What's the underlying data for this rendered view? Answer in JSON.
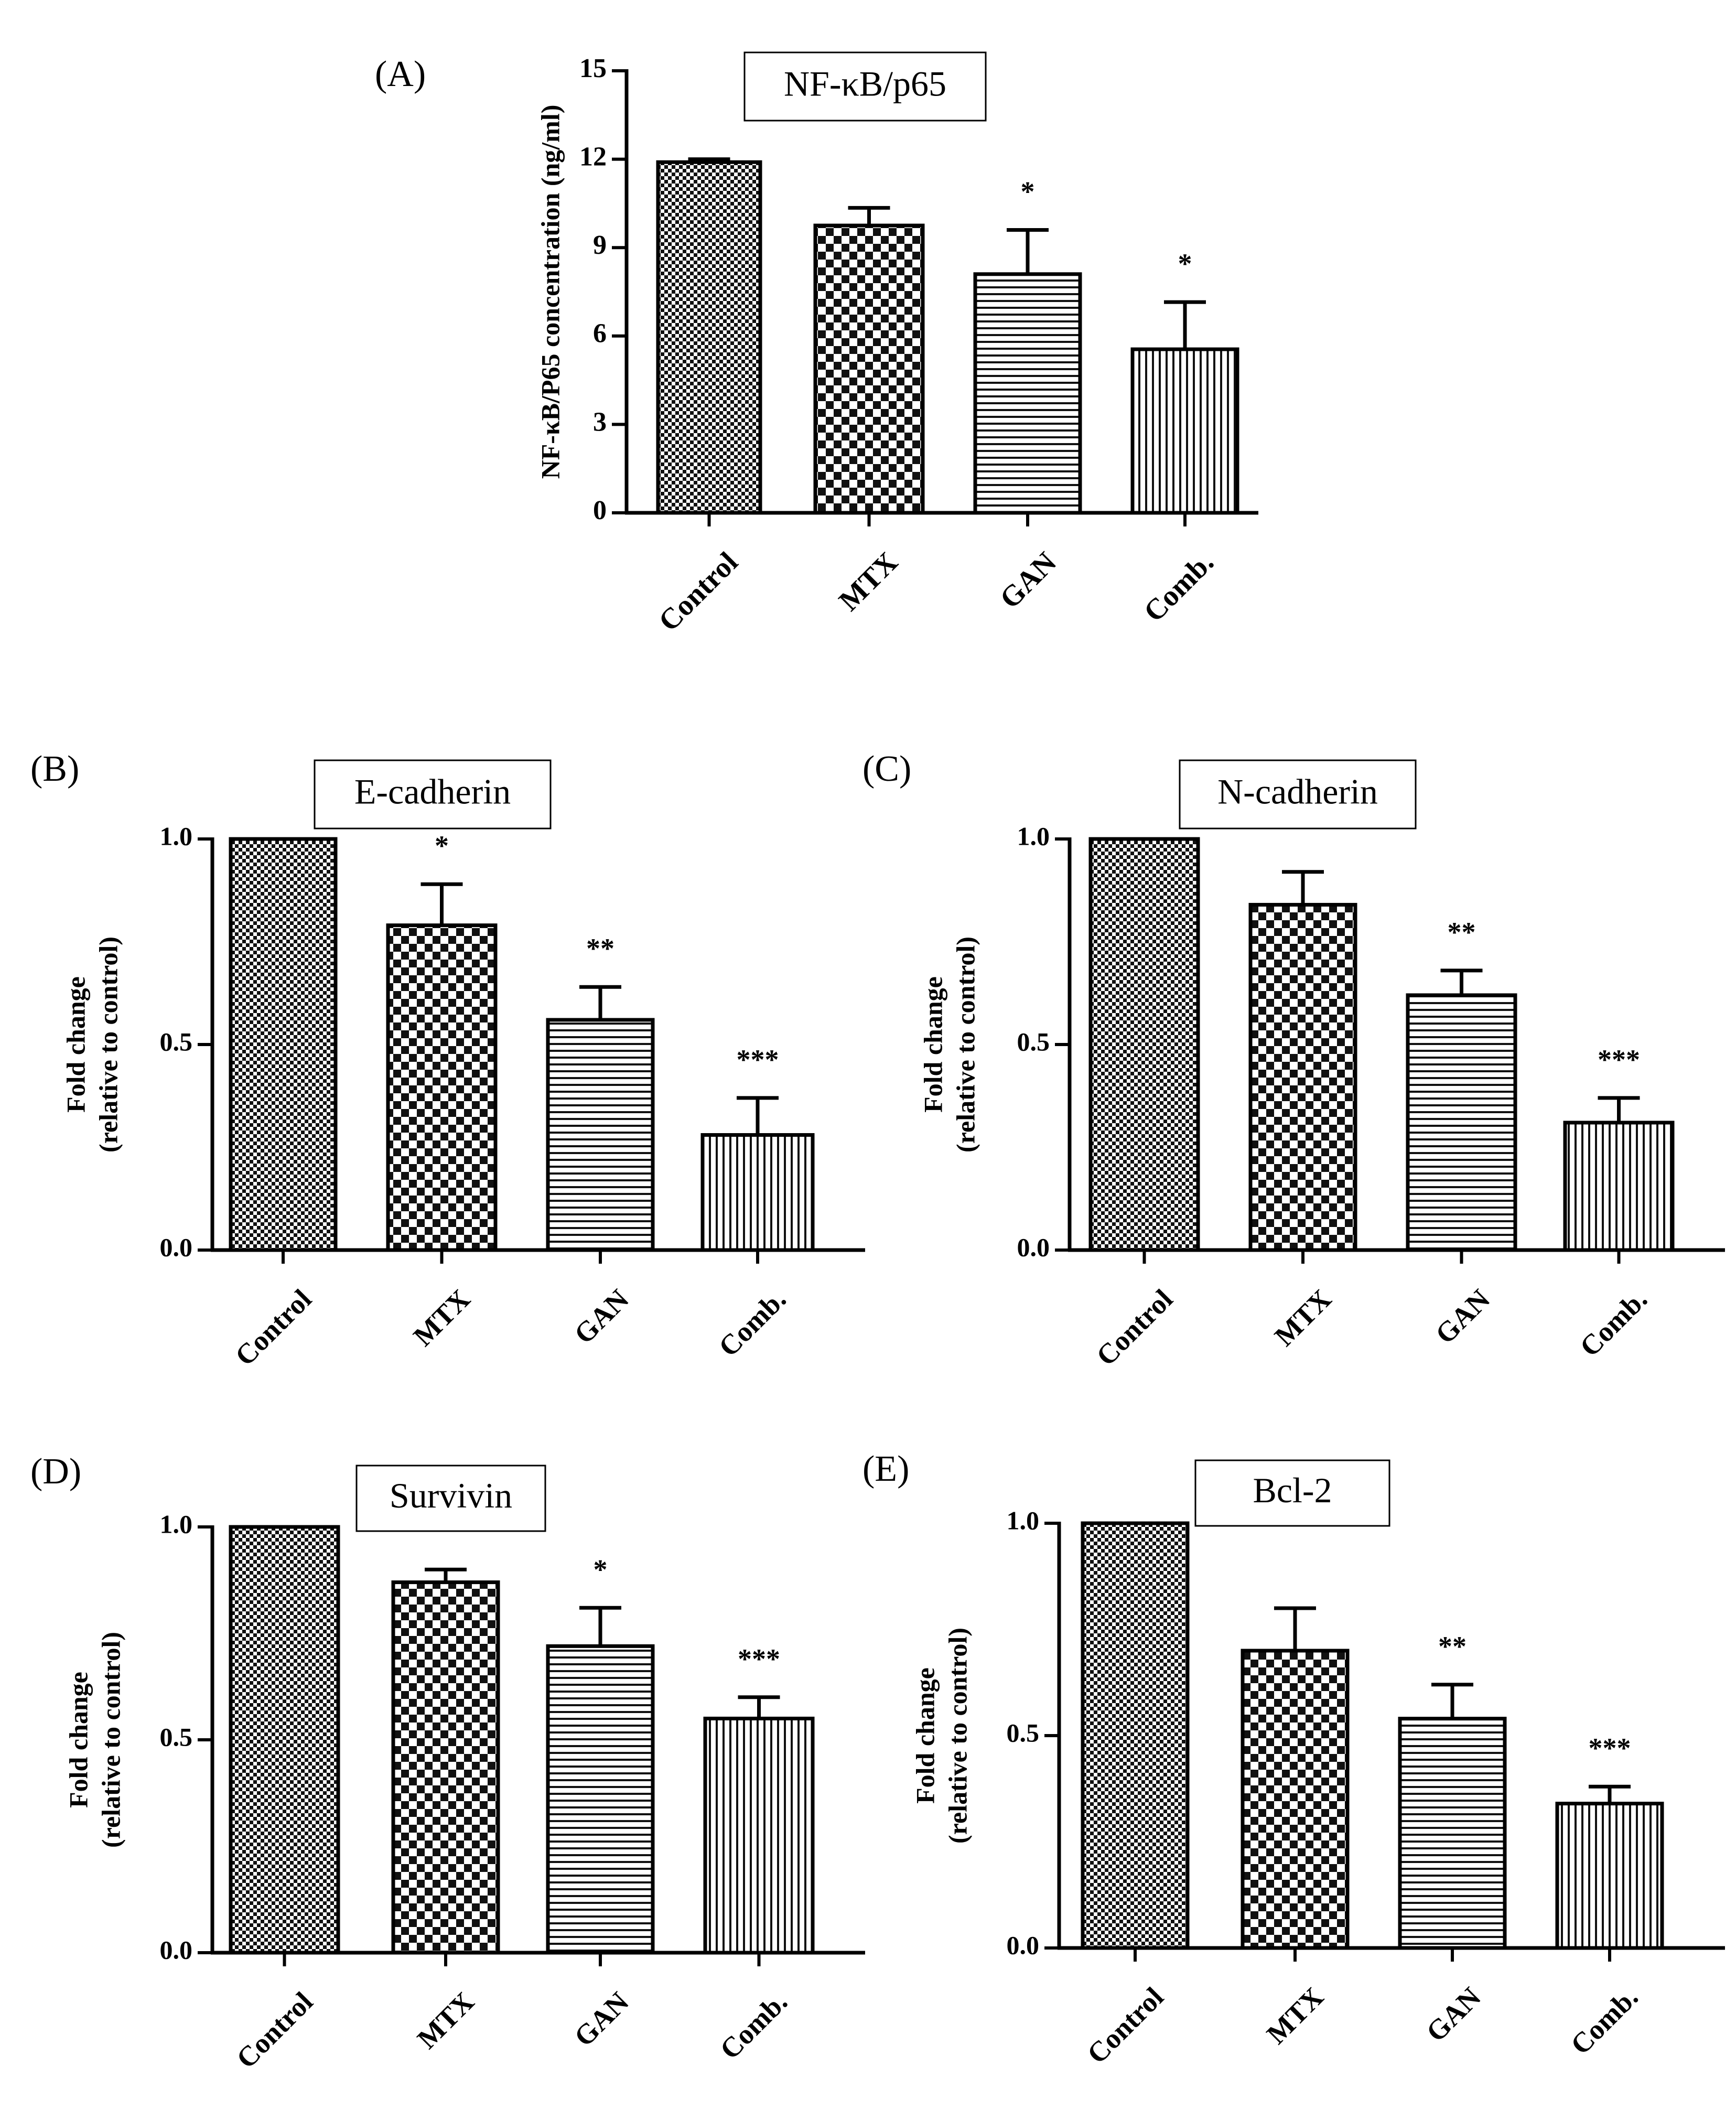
{
  "figure_description": "Bar charts of NF-kB/p65 concentration and fold change of E-cadherin, N-cadherin, Survivin and Bcl-2 for Control, MTX, GAN and combination treatment",
  "chart_data": [
    {
      "id": "A",
      "panel_label": "(A)",
      "type": "bar",
      "title": "NF-κB/p65",
      "xlabel": "",
      "ylabel": "NF-κB/P65 concentration (ng/ml)",
      "ylim": [
        0,
        15
      ],
      "yticks": [
        "0",
        "3",
        "6",
        "9",
        "12",
        "15"
      ],
      "ytick_values": [
        0,
        3,
        6,
        9,
        12,
        15
      ],
      "categories": [
        "Control",
        "MTX",
        "GAN",
        "Comb."
      ],
      "values": [
        11.9,
        9.75,
        8.1,
        5.55
      ],
      "errors": [
        0.1,
        0.6,
        1.5,
        1.6
      ],
      "significance": [
        "",
        "",
        "*",
        "*"
      ],
      "patterns": [
        "fine-check",
        "check",
        "h-lines",
        "v-lines"
      ]
    },
    {
      "id": "B",
      "panel_label": "(B)",
      "type": "bar",
      "title": "E-cadherin",
      "xlabel": "",
      "ylabel": [
        "Fold change",
        "(relative to control)"
      ],
      "ylim": [
        0,
        1.0
      ],
      "yticks": [
        "0.0",
        "0.5",
        "1.0"
      ],
      "ytick_values": [
        0,
        0.5,
        1.0
      ],
      "categories": [
        "Control",
        "MTX",
        "GAN",
        "Comb."
      ],
      "values": [
        1.0,
        0.79,
        0.56,
        0.28
      ],
      "errors": [
        0,
        0.1,
        0.08,
        0.09
      ],
      "significance": [
        "",
        "*",
        "**",
        "***"
      ],
      "patterns": [
        "fine-check",
        "check",
        "h-lines",
        "v-lines"
      ]
    },
    {
      "id": "C",
      "panel_label": "(C)",
      "type": "bar",
      "title": "N-cadherin",
      "xlabel": "",
      "ylabel": [
        "Fold change",
        "(relative to control)"
      ],
      "ylim": [
        0,
        1.0
      ],
      "yticks": [
        "0.0",
        "0.5",
        "1.0"
      ],
      "ytick_values": [
        0,
        0.5,
        1.0
      ],
      "categories": [
        "Control",
        "MTX",
        "GAN",
        "Comb."
      ],
      "values": [
        1.0,
        0.84,
        0.62,
        0.31
      ],
      "errors": [
        0,
        0.08,
        0.06,
        0.06
      ],
      "significance": [
        "",
        "",
        "**",
        "***"
      ],
      "patterns": [
        "fine-check",
        "check",
        "h-lines",
        "v-lines"
      ]
    },
    {
      "id": "D",
      "panel_label": "(D)",
      "type": "bar",
      "title": "Survivin",
      "xlabel": "",
      "ylabel": [
        "Fold change",
        "(relative to control)"
      ],
      "ylim": [
        0,
        1.0
      ],
      "yticks": [
        "0.0",
        "0.5",
        "1.0"
      ],
      "ytick_values": [
        0,
        0.5,
        1.0
      ],
      "categories": [
        "Control",
        "MTX",
        "GAN",
        "Comb."
      ],
      "values": [
        1.0,
        0.87,
        0.72,
        0.55
      ],
      "errors": [
        0,
        0.03,
        0.09,
        0.05
      ],
      "significance": [
        "",
        "",
        "*",
        "***"
      ],
      "patterns": [
        "fine-check",
        "check",
        "h-lines",
        "v-lines"
      ]
    },
    {
      "id": "E",
      "panel_label": "(E)",
      "type": "bar",
      "title": "Bcl-2",
      "xlabel": "",
      "ylabel": [
        "Fold change",
        "(relative to control)"
      ],
      "ylim": [
        0,
        1.0
      ],
      "yticks": [
        "0.0",
        "0.5",
        "1.0"
      ],
      "ytick_values": [
        0,
        0.5,
        1.0
      ],
      "categories": [
        "Control",
        "MTX",
        "GAN",
        "Comb."
      ],
      "values": [
        1.0,
        0.7,
        0.54,
        0.34
      ],
      "errors": [
        0,
        0.1,
        0.08,
        0.04
      ],
      "significance": [
        "",
        "",
        "**",
        "***"
      ],
      "patterns": [
        "fine-check",
        "check",
        "h-lines",
        "v-lines"
      ]
    }
  ]
}
